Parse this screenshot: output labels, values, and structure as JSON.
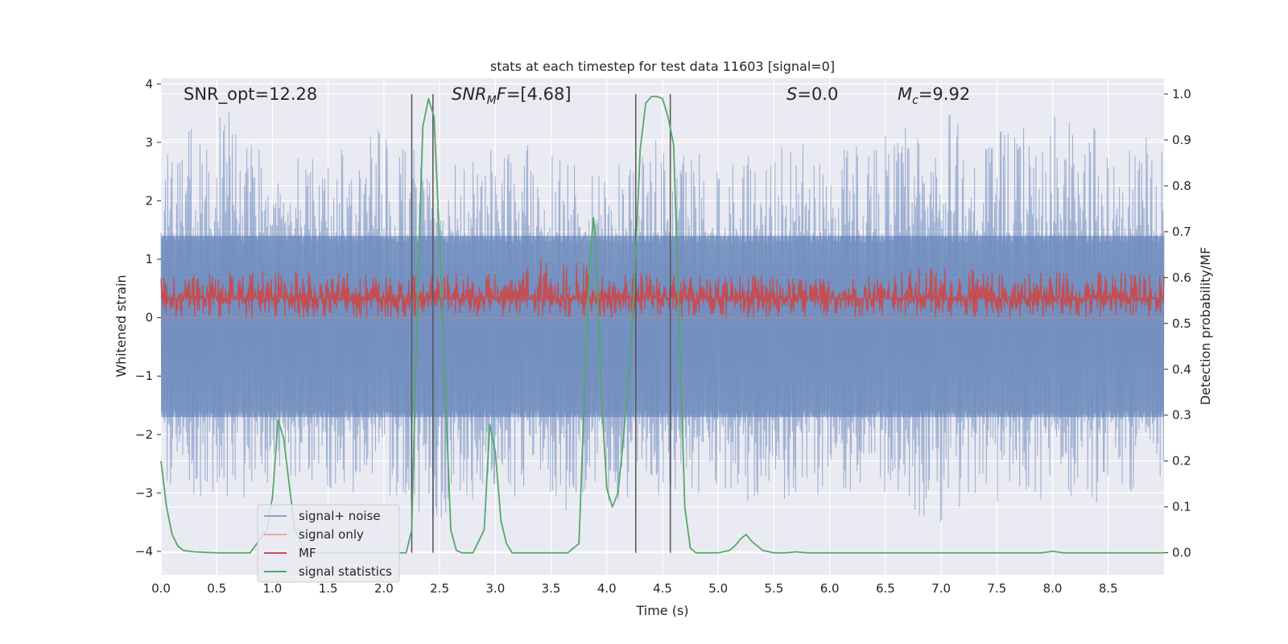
{
  "chart_data": {
    "type": "line",
    "title": "stats at each timestep for test data 11603 [signal=0]",
    "xlabel": "Time (s)",
    "ylabel_left": "Whitened strain",
    "ylabel_right": "Detection probability/MF",
    "xlim": [
      0,
      9.0
    ],
    "ylim_left": [
      -4.4,
      4.1
    ],
    "ylim_right": [
      -0.048,
      1.035
    ],
    "x_ticks": [
      "0.0",
      "0.5",
      "1.0",
      "1.5",
      "2.0",
      "2.5",
      "3.0",
      "3.5",
      "4.0",
      "4.5",
      "5.0",
      "5.5",
      "6.0",
      "6.5",
      "7.0",
      "7.5",
      "8.0",
      "8.5"
    ],
    "x_tick_values": [
      0,
      0.5,
      1,
      1.5,
      2,
      2.5,
      3,
      3.5,
      4,
      4.5,
      5,
      5.5,
      6,
      6.5,
      7,
      7.5,
      8,
      8.5
    ],
    "y_left_ticks": [
      "−4",
      "−3",
      "−2",
      "−1",
      "0",
      "1",
      "2",
      "3",
      "4"
    ],
    "y_left_tick_values": [
      -4,
      -3,
      -2,
      -1,
      0,
      1,
      2,
      3,
      4
    ],
    "y_right_ticks": [
      "0.0",
      "0.1",
      "0.2",
      "0.3",
      "0.4",
      "0.5",
      "0.6",
      "0.7",
      "0.8",
      "0.9",
      "1.0"
    ],
    "y_right_tick_values": [
      0,
      0.1,
      0.2,
      0.3,
      0.4,
      0.5,
      0.6,
      0.7,
      0.8,
      0.9,
      1.0
    ],
    "grid": true,
    "legend_position": "lower-left",
    "annotations": {
      "snr_opt": "SNR_opt=12.28",
      "snr_mf_var": "SNR",
      "snr_mf_sub": "M",
      "snr_mf_var2": "F",
      "snr_mf_rest": "=[4.68]",
      "s_var": "S",
      "s_rest": "=0.0",
      "mc_var": "M",
      "mc_sub": "c",
      "mc_rest": "=9.92"
    },
    "vertical_lines_x": [
      2.25,
      2.44,
      4.26,
      4.57
    ],
    "series": [
      {
        "name": "signal+ noise",
        "color": "#4c72b0",
        "axis": "left",
        "style": "dense noise band, approx range -3.6 to 3.9",
        "envelope_x": [
          0,
          0.5,
          1,
          1.5,
          2,
          2.5,
          3,
          3.5,
          4,
          4.5,
          5,
          5.5,
          6,
          6.5,
          7,
          7.5,
          8,
          8.5,
          9
        ],
        "upper": [
          2.7,
          3.8,
          2.6,
          2.9,
          3.3,
          2.6,
          2.9,
          3.1,
          2.8,
          3.1,
          3.0,
          2.9,
          3.1,
          3.3,
          3.6,
          3.2,
          3.5,
          3.3,
          3.0
        ],
        "lower": [
          -2.9,
          -3.3,
          -3.0,
          -2.9,
          -3.2,
          -3.5,
          -2.9,
          -3.4,
          -3.2,
          -3.1,
          -3.0,
          -3.3,
          -3.0,
          -3.1,
          -3.6,
          -3.2,
          -3.1,
          -3.2,
          -3.0
        ]
      },
      {
        "name": "signal only",
        "color": "#dd8452",
        "axis": "left",
        "x": [
          0,
          9.0
        ],
        "y": [
          0,
          0
        ]
      },
      {
        "name": "MF",
        "color": "#c44e52",
        "axis": "right",
        "style": "dense noise band, approx range 0.50 to 0.64",
        "envelope_x": [
          0,
          1,
          2,
          3,
          3.5,
          4,
          5,
          6,
          7,
          7.5,
          8,
          9
        ],
        "upper": [
          0.6,
          0.62,
          0.61,
          0.61,
          0.66,
          0.61,
          0.61,
          0.6,
          0.63,
          0.61,
          0.62,
          0.61
        ],
        "lower": [
          0.51,
          0.51,
          0.51,
          0.51,
          0.51,
          0.51,
          0.51,
          0.51,
          0.51,
          0.51,
          0.51,
          0.51
        ]
      },
      {
        "name": "signal statistics",
        "color": "#55a868",
        "axis": "right",
        "x": [
          0,
          0.05,
          0.1,
          0.15,
          0.2,
          0.3,
          0.5,
          0.8,
          0.95,
          1.0,
          1.05,
          1.1,
          1.15,
          1.2,
          1.3,
          1.5,
          2.0,
          2.2,
          2.25,
          2.3,
          2.35,
          2.4,
          2.45,
          2.5,
          2.55,
          2.6,
          2.65,
          2.7,
          2.8,
          2.9,
          2.95,
          3.0,
          3.05,
          3.1,
          3.15,
          3.2,
          3.5,
          3.65,
          3.75,
          3.8,
          3.85,
          3.88,
          3.9,
          3.95,
          4.0,
          4.05,
          4.1,
          4.15,
          4.2,
          4.25,
          4.3,
          4.35,
          4.4,
          4.45,
          4.5,
          4.55,
          4.6,
          4.65,
          4.7,
          4.75,
          4.8,
          5.0,
          5.1,
          5.15,
          5.2,
          5.25,
          5.3,
          5.4,
          5.5,
          5.6,
          5.7,
          5.8,
          6.0,
          7.0,
          7.5,
          7.9,
          8.0,
          8.1,
          8.5,
          9.0
        ],
        "y": [
          0.2,
          0.1,
          0.04,
          0.015,
          0.005,
          0.002,
          0.0,
          0.0,
          0.05,
          0.12,
          0.29,
          0.25,
          0.15,
          0.05,
          0.0,
          0.0,
          0.0,
          0.0,
          0.05,
          0.55,
          0.93,
          0.99,
          0.95,
          0.68,
          0.36,
          0.05,
          0.005,
          0.0,
          0.0,
          0.05,
          0.28,
          0.22,
          0.07,
          0.02,
          0.0,
          0.0,
          0.0,
          0.0,
          0.02,
          0.35,
          0.65,
          0.73,
          0.68,
          0.35,
          0.14,
          0.1,
          0.13,
          0.25,
          0.4,
          0.6,
          0.88,
          0.98,
          0.995,
          0.995,
          0.99,
          0.95,
          0.89,
          0.5,
          0.1,
          0.01,
          0.0,
          0.0,
          0.005,
          0.015,
          0.03,
          0.04,
          0.025,
          0.005,
          0.0,
          0.0,
          0.002,
          0.0,
          0.0,
          0.0,
          0.0,
          0.0,
          0.003,
          0.0,
          0.0,
          0.0
        ]
      }
    ]
  }
}
